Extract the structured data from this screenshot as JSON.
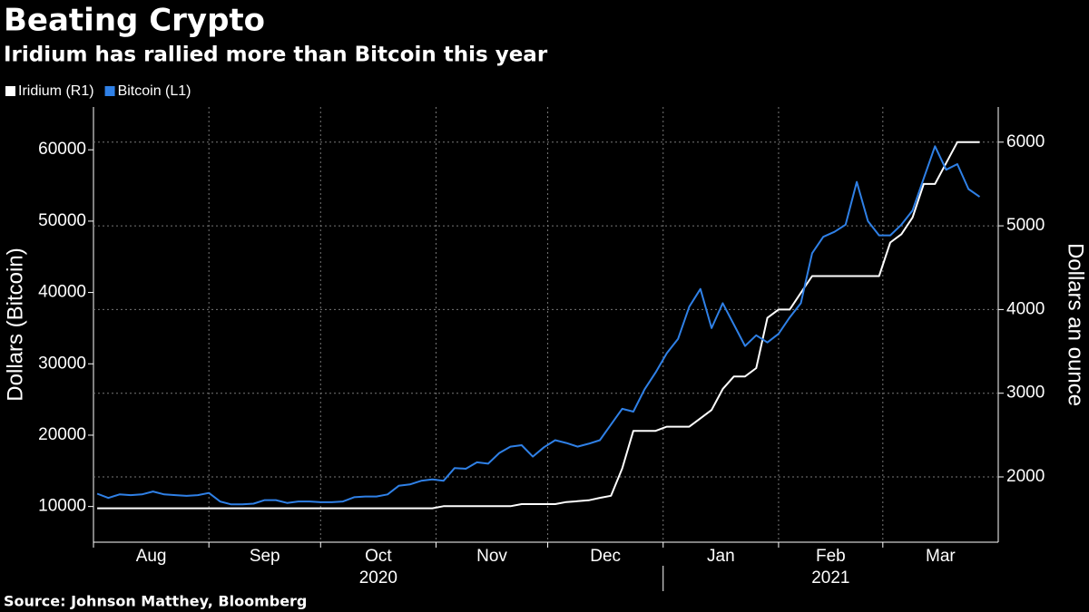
{
  "chart_data": {
    "type": "line",
    "title": "Beating Crypto",
    "subtitle": "Iridium has rallied more than Bitcoin this year",
    "source": "Source: Johnson Matthey, Bloomberg",
    "ylabel": "Dollars (Bitcoin)",
    "y2label": "Dollars an ounce",
    "x": [
      1,
      4,
      7,
      10,
      13,
      16,
      19,
      22,
      25,
      28,
      31,
      34,
      37,
      40,
      43,
      46,
      49,
      52,
      55,
      58,
      61,
      64,
      67,
      70,
      73,
      76,
      79,
      82,
      85,
      88,
      91,
      94,
      97,
      100,
      103,
      106,
      109,
      112,
      115,
      118,
      121,
      124,
      127,
      130,
      133,
      136,
      139,
      142,
      145,
      148,
      151,
      154,
      157,
      160,
      163,
      166,
      169,
      172,
      175,
      178,
      181,
      184,
      187,
      190,
      193,
      196,
      199,
      202,
      205,
      208,
      211,
      214,
      217,
      220,
      223,
      226,
      229,
      232,
      235,
      238
    ],
    "series": [
      {
        "name": "Iridium (R1)",
        "color": "#ffffff",
        "axis": "y2",
        "values": [
          1625,
          1625,
          1625,
          1625,
          1625,
          1625,
          1625,
          1625,
          1625,
          1625,
          1625,
          1625,
          1625,
          1625,
          1625,
          1625,
          1625,
          1625,
          1625,
          1625,
          1625,
          1625,
          1625,
          1625,
          1625,
          1625,
          1625,
          1625,
          1625,
          1625,
          1625,
          1650,
          1650,
          1650,
          1650,
          1650,
          1650,
          1650,
          1675,
          1675,
          1675,
          1675,
          1700,
          1710,
          1720,
          1750,
          1775,
          2100,
          2550,
          2550,
          2550,
          2600,
          2600,
          2600,
          2700,
          2800,
          3050,
          3200,
          3200,
          3300,
          3900,
          4000,
          4000,
          4200,
          4400,
          4400,
          4400,
          4400,
          4400,
          4400,
          4400,
          4800,
          4900,
          5100,
          5500,
          5500,
          5750,
          6000,
          6000,
          6000
        ]
      },
      {
        "name": "Bitcoin (L1)",
        "color": "#2f80e6",
        "values": [
          11800,
          11200,
          11700,
          11600,
          11700,
          12100,
          11700,
          11600,
          11500,
          11600,
          11900,
          10700,
          10300,
          10300,
          10400,
          10900,
          10900,
          10500,
          10700,
          10700,
          10600,
          10600,
          10700,
          11300,
          11400,
          11400,
          11700,
          12900,
          13100,
          13600,
          13800,
          13600,
          15400,
          15300,
          16200,
          16000,
          17500,
          18400,
          18600,
          17000,
          18300,
          19300,
          18900,
          18400,
          18800,
          19300,
          21500,
          23700,
          23300,
          26400,
          28800,
          31500,
          33500,
          38000,
          40500,
          35000,
          38500,
          35500,
          32500,
          34000,
          33000,
          34200,
          36500,
          38500,
          45500,
          47800,
          48500,
          49500,
          55500,
          50000,
          48000,
          48000,
          49500,
          51500,
          56000,
          60500,
          57200,
          58000,
          54500,
          53400
        ]
      }
    ],
    "xlim": [
      0,
      243
    ],
    "xticks": [
      {
        "value": 0,
        "label": "Aug"
      },
      {
        "value": 31,
        "label": "Sep"
      },
      {
        "value": 61,
        "label": "Oct"
      },
      {
        "value": 92,
        "label": "Nov"
      },
      {
        "value": 122,
        "label": "Dec"
      },
      {
        "value": 153,
        "label": "Jan"
      },
      {
        "value": 184,
        "label": "Feb"
      },
      {
        "value": 212,
        "label": "Mar"
      }
    ],
    "x_group_labels": [
      {
        "value": 0,
        "label": "2020"
      },
      {
        "value": 153,
        "label": "2021"
      }
    ],
    "ylim": [
      5000,
      66000
    ],
    "yticks": [
      10000,
      20000,
      30000,
      40000,
      50000,
      60000
    ],
    "y2lim": [
      1220,
      6420
    ],
    "y2ticks": [
      2000,
      3000,
      4000,
      5000,
      6000
    ],
    "grid": true,
    "legend": "top-left"
  }
}
